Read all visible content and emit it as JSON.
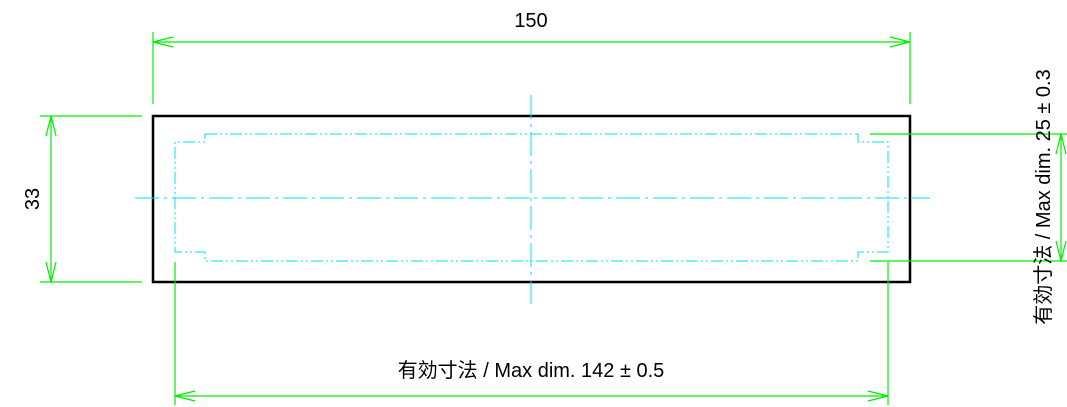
{
  "colors": {
    "outline": "#000000",
    "dimension": "#00ee00",
    "centerline": "#00e5ee",
    "effective_area": "#00e5ee",
    "text": "#000000"
  },
  "dimensions": {
    "overall_width": "150",
    "overall_height": "33",
    "effective_width": "有効寸法 / Max dim. 142 ± 0.5",
    "effective_height": "有効寸法 / Max dim. 25 ± 0.3"
  }
}
